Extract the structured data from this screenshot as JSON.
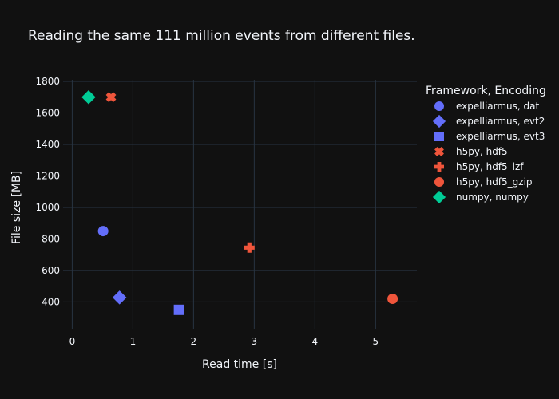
{
  "chart_data": {
    "type": "scatter",
    "title": "Reading the same 111 million events from different files.",
    "xlabel": "Read time [s]",
    "ylabel": "File size [MB]",
    "xlim": [
      -0.15,
      5.68
    ],
    "ylim": [
      230,
      1810
    ],
    "x_ticks": [
      0,
      1,
      2,
      3,
      4,
      5
    ],
    "y_ticks": [
      400,
      600,
      800,
      1000,
      1200,
      1400,
      1600,
      1800
    ],
    "grid": true,
    "legend": {
      "title": "Framework, Encoding",
      "placement": "right"
    },
    "series": [
      {
        "name": "expelliarmus, dat",
        "color": "#636efa",
        "symbol": "circle",
        "x": [
          0.51
        ],
        "y": [
          850
        ]
      },
      {
        "name": "expelliarmus, evt2",
        "color": "#636efa",
        "symbol": "diamond",
        "x": [
          0.78
        ],
        "y": [
          428
        ]
      },
      {
        "name": "expelliarmus, evt3",
        "color": "#636efa",
        "symbol": "square",
        "x": [
          1.76
        ],
        "y": [
          350
        ]
      },
      {
        "name": "h5py, hdf5",
        "color": "#EF553B",
        "symbol": "x",
        "x": [
          0.64
        ],
        "y": [
          1700
        ]
      },
      {
        "name": "h5py, hdf5_lzf",
        "color": "#EF553B",
        "symbol": "cross",
        "x": [
          2.92
        ],
        "y": [
          745
        ]
      },
      {
        "name": "h5py, hdf5_gzip",
        "color": "#EF553B",
        "symbol": "circle",
        "x": [
          5.28
        ],
        "y": [
          420
        ]
      },
      {
        "name": "numpy, numpy",
        "color": "#00cc96",
        "symbol": "diamond",
        "x": [
          0.27
        ],
        "y": [
          1700
        ]
      }
    ]
  }
}
